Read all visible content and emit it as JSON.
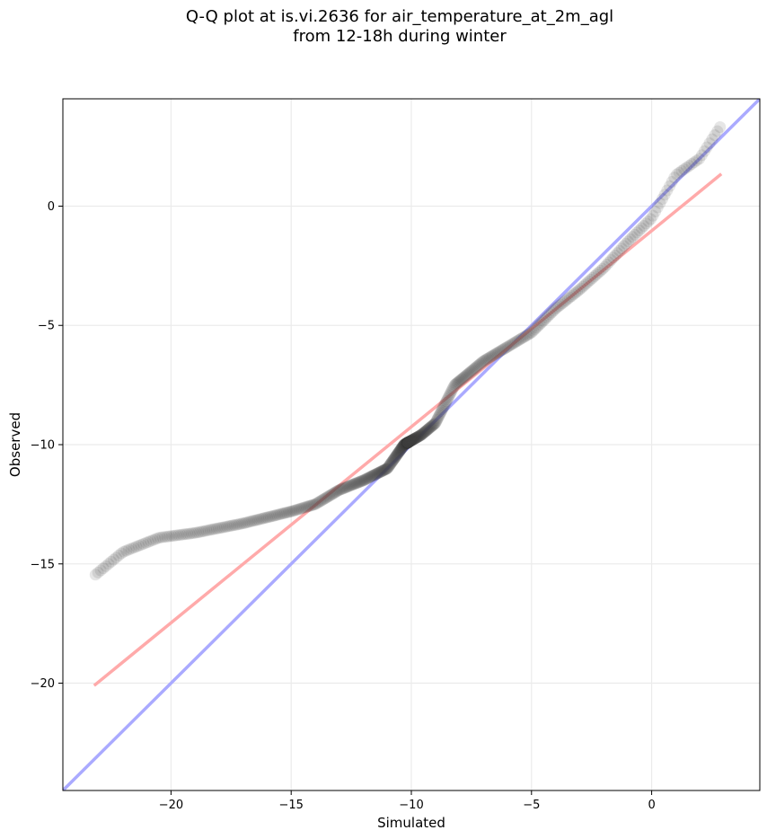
{
  "chart_data": {
    "type": "scatter",
    "title_line1": "Q-Q plot at is.vi.2636 for air_temperature_at_2m_agl",
    "title_line2": "from 12-18h during winter",
    "xlabel": "Simulated",
    "ylabel": "Observed",
    "xlim": [
      -24.5,
      4.5
    ],
    "ylim": [
      -24.5,
      4.5
    ],
    "xticks": [
      -20,
      -15,
      -10,
      -5,
      0
    ],
    "yticks": [
      -20,
      -15,
      -10,
      -5,
      0
    ],
    "xtick_labels": [
      "−20",
      "−15",
      "−10",
      "−5",
      "0"
    ],
    "ytick_labels": [
      "−20",
      "−15",
      "−10",
      "−5",
      "0"
    ],
    "grid": true,
    "colors": {
      "points": "#3a3a3a",
      "identity_line": "#aaaaff",
      "fit_line": "#ffaaaa",
      "axis": "#000000",
      "grid": "#ebebeb"
    },
    "identity_line": {
      "x": [
        -24.5,
        4.5
      ],
      "y": [
        -24.5,
        4.5
      ]
    },
    "fit_line": {
      "x": [
        -23.2,
        2.9
      ],
      "y": [
        -20.1,
        1.35
      ]
    },
    "quantile_knots": {
      "x": [
        -23.2,
        -22.0,
        -20.5,
        -19.0,
        -17.0,
        -15.0,
        -14.0,
        -13.0,
        -12.0,
        -11.0,
        -10.3,
        -9.6,
        -9.0,
        -8.2,
        -7.0,
        -6.0,
        -5.0,
        -4.0,
        -3.0,
        -2.0,
        -1.0,
        0.0,
        1.0,
        2.0,
        2.9
      ],
      "y": [
        -15.5,
        -14.5,
        -13.9,
        -13.7,
        -13.3,
        -12.8,
        -12.5,
        -11.9,
        -11.5,
        -11.0,
        -10.0,
        -9.6,
        -9.1,
        -7.5,
        -6.5,
        -5.9,
        -5.3,
        -4.3,
        -3.5,
        -2.6,
        -1.5,
        -0.5,
        1.3,
        2.0,
        3.4
      ]
    },
    "n_points": 520
  }
}
